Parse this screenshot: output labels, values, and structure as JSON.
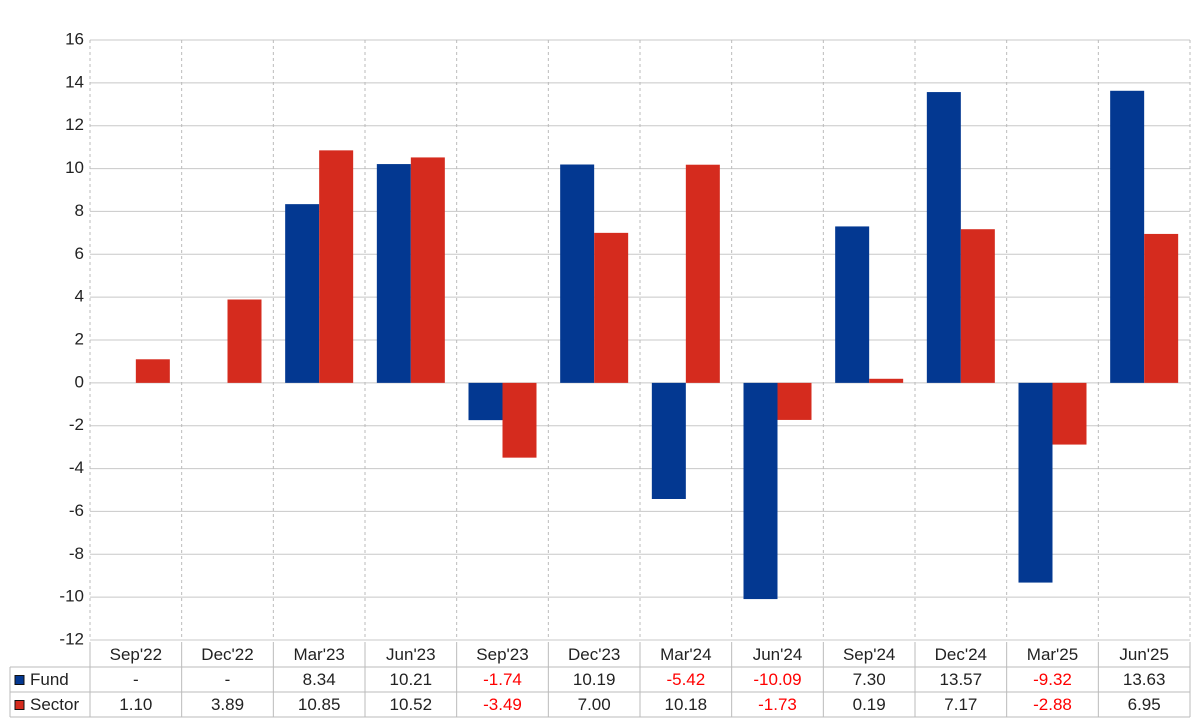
{
  "chart_data": {
    "type": "bar",
    "categories": [
      "Sep'22",
      "Dec'22",
      "Mar'23",
      "Jun'23",
      "Sep'23",
      "Dec'23",
      "Mar'24",
      "Jun'24",
      "Sep'24",
      "Dec'24",
      "Mar'25",
      "Jun'25"
    ],
    "series": [
      {
        "name": "Fund",
        "color": "#033891",
        "values": [
          null,
          null,
          8.34,
          10.21,
          -1.74,
          10.19,
          -5.42,
          -10.09,
          7.3,
          13.57,
          -9.32,
          13.63
        ],
        "value_labels": [
          "-",
          "-",
          "8.34",
          "10.21",
          "-1.74",
          "10.19",
          "-5.42",
          "-10.09",
          "7.30",
          "13.57",
          "-9.32",
          "13.63"
        ]
      },
      {
        "name": "Sector",
        "color": "#d52b1e",
        "values": [
          1.1,
          3.89,
          10.85,
          10.52,
          -3.49,
          7.0,
          10.18,
          -1.73,
          0.19,
          7.17,
          -2.88,
          6.95
        ],
        "value_labels": [
          "1.10",
          "3.89",
          "10.85",
          "10.52",
          "-3.49",
          "7.00",
          "10.18",
          "-1.73",
          "0.19",
          "7.17",
          "-2.88",
          "6.95"
        ]
      }
    ],
    "ylim": [
      -12,
      16
    ],
    "yticks": [
      -12,
      -10,
      -8,
      -6,
      -4,
      -2,
      0,
      2,
      4,
      6,
      8,
      10,
      12,
      14,
      16
    ],
    "grid": true,
    "negative_label_color": "#ff0000"
  }
}
